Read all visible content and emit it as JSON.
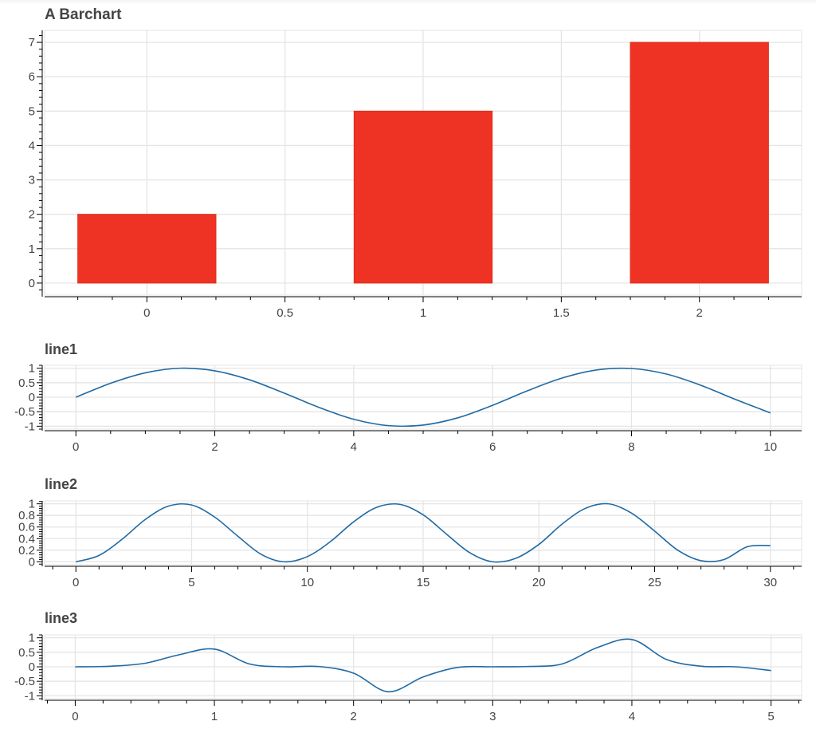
{
  "chart_data": [
    {
      "type": "bar",
      "title": "A Barchart",
      "xlabel": "",
      "ylabel": "",
      "x": [
        0,
        1,
        2
      ],
      "values": [
        2,
        5,
        7
      ],
      "bar_width": 0.5,
      "color": "#ee3224",
      "xlim": [
        -0.37,
        2.37
      ],
      "ylim": [
        -0.35,
        7.35
      ],
      "xticks": [
        0,
        0.5,
        1,
        1.5,
        2
      ],
      "xtick_labels": [
        "0",
        "0.5",
        "1",
        "1.5",
        "2"
      ],
      "yticks": [
        0,
        1,
        2,
        3,
        4,
        5,
        6,
        7
      ],
      "ytick_labels": [
        "0",
        "1",
        "2",
        "3",
        "4",
        "5",
        "6",
        "7"
      ],
      "grid": true,
      "legend": "none"
    },
    {
      "type": "line",
      "title": "line1",
      "xlabel": "",
      "ylabel": "",
      "x": [
        0,
        0.5,
        1,
        1.5,
        2,
        2.5,
        3,
        3.5,
        4,
        4.5,
        5,
        5.5,
        6,
        6.5,
        7,
        7.5,
        8,
        8.5,
        9,
        9.5,
        10
      ],
      "y": [
        0,
        0.48,
        0.84,
        1.0,
        0.91,
        0.6,
        0.14,
        -0.35,
        -0.76,
        -0.98,
        -0.96,
        -0.71,
        -0.28,
        0.22,
        0.66,
        0.94,
        0.99,
        0.8,
        0.41,
        -0.08,
        -0.54
      ],
      "color": "#1f6aa5",
      "xlim": [
        -0.45,
        10.45
      ],
      "ylim": [
        -1.1,
        1.1
      ],
      "xticks": [
        0,
        2,
        4,
        6,
        8,
        10
      ],
      "xtick_labels": [
        "0",
        "2",
        "4",
        "6",
        "8",
        "10"
      ],
      "yticks": [
        -1,
        -0.5,
        0,
        0.5,
        1
      ],
      "ytick_labels": [
        "-1",
        "-0.5",
        "0",
        "0.5",
        "1"
      ],
      "grid": true,
      "legend": "none"
    },
    {
      "type": "line",
      "title": "line2",
      "xlabel": "",
      "ylabel": "",
      "x": [
        0,
        1,
        2,
        3,
        4,
        5,
        6,
        7,
        8,
        9,
        10,
        11,
        12,
        13,
        14,
        15,
        16,
        17,
        18,
        19,
        20,
        21,
        22,
        23,
        24,
        25,
        26,
        27,
        28,
        29,
        30
      ],
      "y": [
        0,
        0.11,
        0.39,
        0.73,
        0.96,
        0.98,
        0.77,
        0.44,
        0.13,
        0.0,
        0.09,
        0.35,
        0.69,
        0.94,
        0.99,
        0.81,
        0.48,
        0.16,
        0.0,
        0.06,
        0.3,
        0.65,
        0.92,
        1.0,
        0.84,
        0.53,
        0.2,
        0.02,
        0.04,
        0.26,
        0.28
      ],
      "color": "#1f6aa5",
      "xlim": [
        -1.35,
        31.35
      ],
      "ylim": [
        -0.05,
        1.05
      ],
      "xticks": [
        0,
        5,
        10,
        15,
        20,
        25,
        30
      ],
      "xtick_labels": [
        "0",
        "5",
        "10",
        "15",
        "20",
        "25",
        "30"
      ],
      "yticks": [
        0,
        0.2,
        0.4,
        0.6,
        0.8,
        1
      ],
      "ytick_labels": [
        "0",
        "0.2",
        "0.4",
        "0.6",
        "0.8",
        "1"
      ],
      "grid": true,
      "legend": "none"
    },
    {
      "type": "line",
      "title": "line3",
      "xlabel": "",
      "ylabel": "",
      "x": [
        0,
        0.25,
        0.5,
        0.75,
        1.0,
        1.25,
        1.5,
        1.75,
        2.0,
        2.25,
        2.5,
        2.75,
        3.0,
        3.25,
        3.5,
        3.75,
        4.0,
        4.25,
        4.5,
        4.75,
        5.0
      ],
      "y": [
        0,
        0.02,
        0.12,
        0.42,
        0.61,
        0.1,
        0.0,
        0.01,
        -0.22,
        -0.86,
        -0.35,
        -0.02,
        0.0,
        0.01,
        0.1,
        0.66,
        0.94,
        0.25,
        0.02,
        0.0,
        -0.13
      ],
      "color": "#1f6aa5",
      "xlim": [
        -0.22,
        5.22
      ],
      "ylim": [
        -1.1,
        1.1
      ],
      "xticks": [
        0,
        1,
        2,
        3,
        4,
        5
      ],
      "xtick_labels": [
        "0",
        "1",
        "2",
        "3",
        "4",
        "5"
      ],
      "yticks": [
        -1,
        -0.5,
        0,
        0.5,
        1
      ],
      "ytick_labels": [
        "-1",
        "-0.5",
        "0",
        "0.5",
        "1"
      ],
      "grid": true,
      "legend": "none"
    }
  ]
}
